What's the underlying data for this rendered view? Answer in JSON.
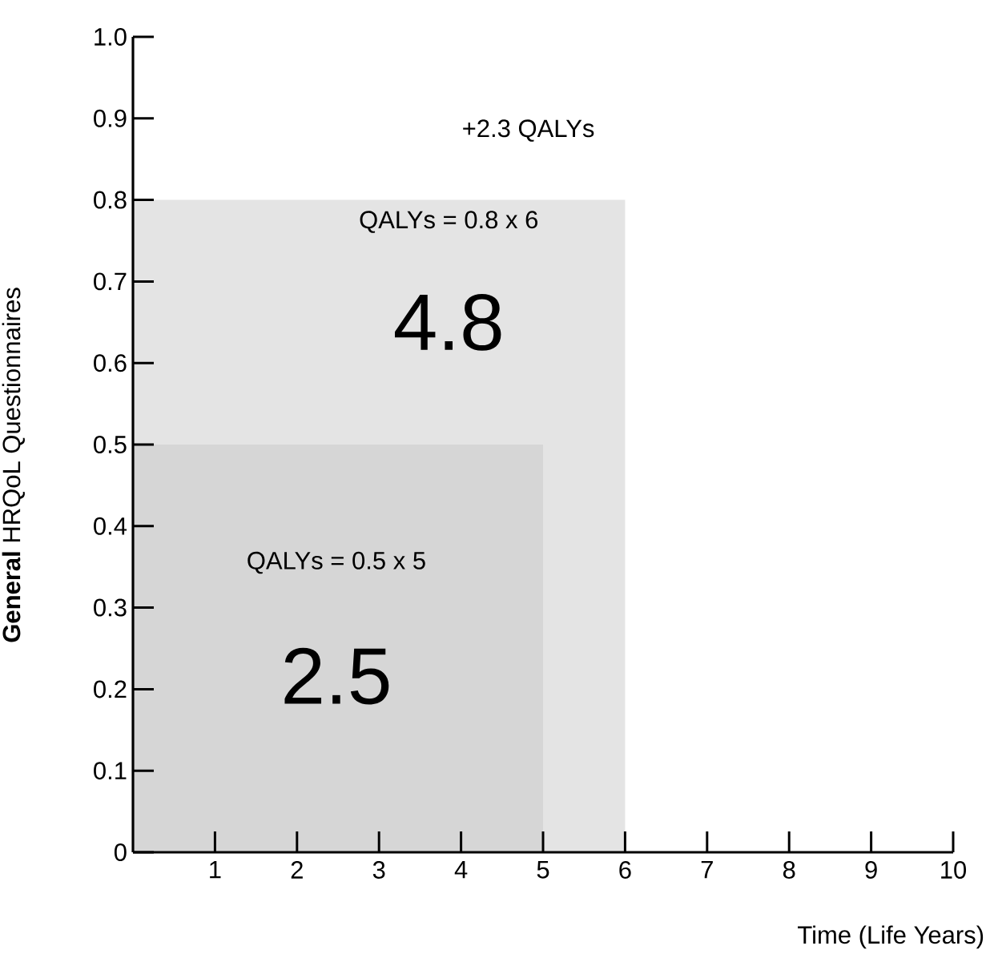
{
  "chart_data": {
    "type": "area",
    "xlabel": "Time (Life Years)",
    "ylabel": "**General** HRQoL Questionnaires",
    "xlim": [
      0,
      10
    ],
    "xticks": [
      1,
      2,
      3,
      4,
      5,
      6,
      7,
      8,
      9,
      10
    ],
    "ylim": [
      0,
      1
    ],
    "yticks": [
      0,
      0.1,
      0.2,
      0.3,
      0.4,
      0.5,
      0.6,
      0.7,
      0.8,
      0.9,
      {
        "value": 1,
        "label": "1.0"
      }
    ],
    "series": [
      {
        "color": "#e4e4e4",
        "x": [
          0,
          6
        ],
        "values": [
          0.8,
          0.8
        ]
      },
      {
        "color": "#d6d6d6",
        "x": [
          0,
          5
        ],
        "values": [
          0.5,
          0.5
        ]
      }
    ],
    "annotations": [
      "+2.3 QALYs",
      "QALYs = 0.8 x 6",
      "4.8",
      "QALYs = 0.5 x 5",
      "2.5"
    ]
  }
}
